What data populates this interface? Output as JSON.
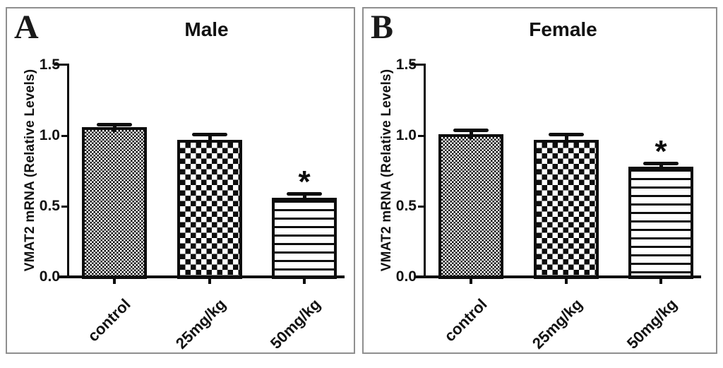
{
  "figure": {
    "background": "#ffffff",
    "panel_border_color": "#8f8f8f",
    "ink_color": "#0d0d0d"
  },
  "chart_data": [
    {
      "type": "bar",
      "panel_label": "A",
      "title": "Male",
      "ylabel": "VMAT2 mRNA (Relative Levels)",
      "categories": [
        "control",
        "25mg/kg",
        "50mg/kg"
      ],
      "values": [
        1.06,
        0.97,
        0.56
      ],
      "errors": [
        0.02,
        0.04,
        0.03
      ],
      "significance": [
        "",
        "",
        "*"
      ],
      "bar_patterns": [
        "fine-checker",
        "checker",
        "horizontal-lines"
      ],
      "yticks": [
        0.0,
        0.5,
        1.0,
        1.5
      ],
      "ylim": [
        0,
        1.5
      ],
      "grid": false,
      "legend": "none"
    },
    {
      "type": "bar",
      "panel_label": "B",
      "title": "Female",
      "ylabel": "VMAT2 mRNA (Relative Levels)",
      "categories": [
        "control",
        "25mg/kg",
        "50mg/kg"
      ],
      "values": [
        1.01,
        0.97,
        0.78
      ],
      "errors": [
        0.03,
        0.04,
        0.025
      ],
      "significance": [
        "",
        "",
        "*"
      ],
      "bar_patterns": [
        "fine-checker",
        "checker",
        "horizontal-lines"
      ],
      "yticks": [
        0.0,
        0.5,
        1.0,
        1.5
      ],
      "ylim": [
        0,
        1.5
      ],
      "grid": false,
      "legend": "none"
    }
  ]
}
